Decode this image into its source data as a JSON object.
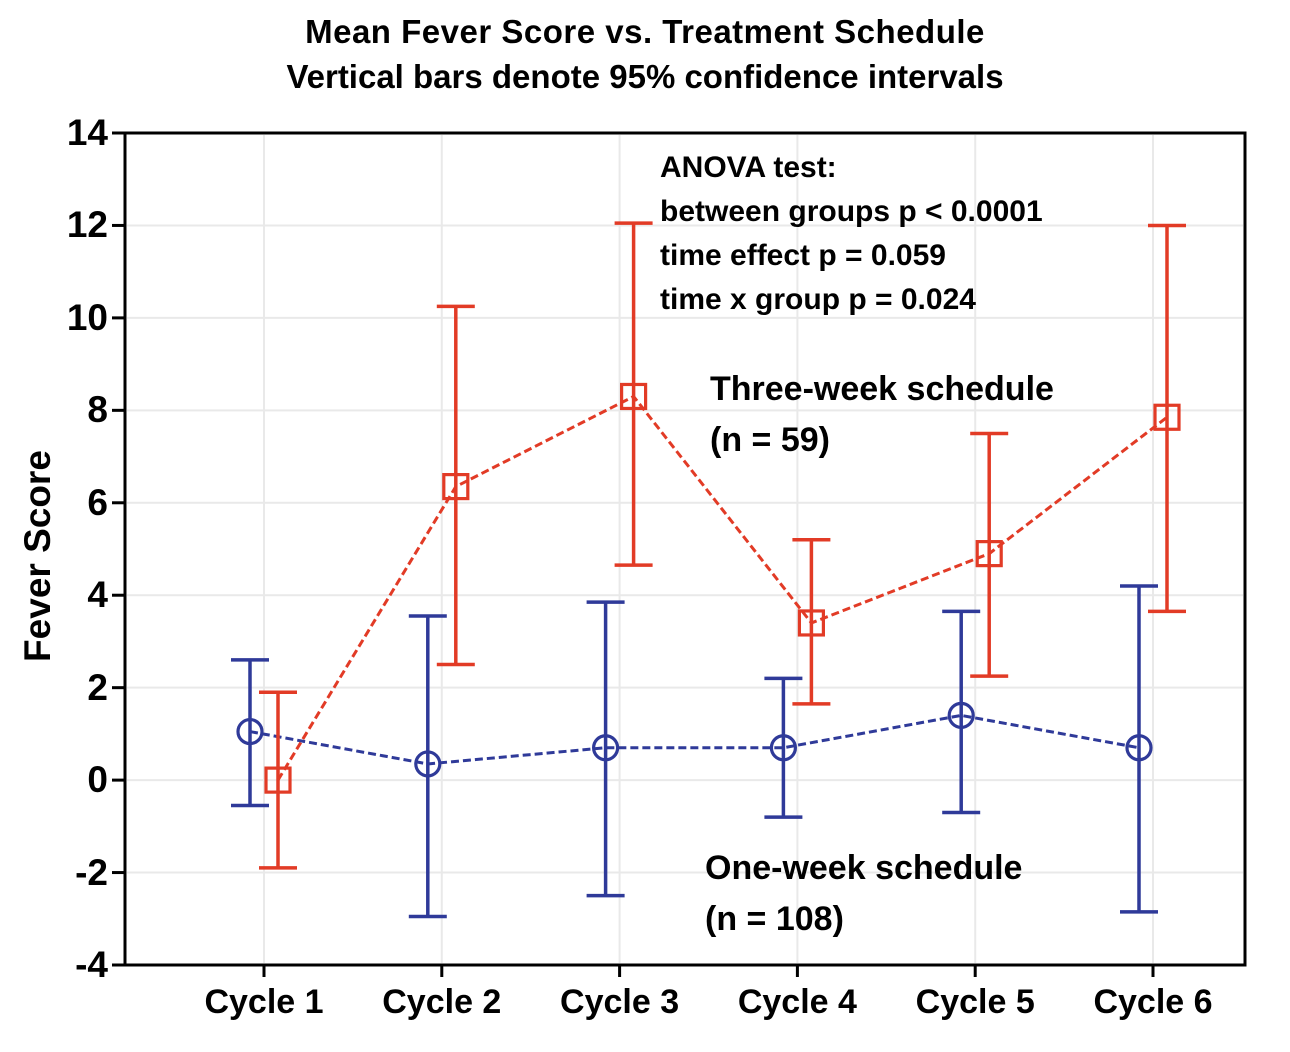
{
  "chart_data": {
    "type": "line",
    "title": "Mean Fever Score vs. Treatment Schedule",
    "subtitle": "Vertical bars denote 95% confidence intervals",
    "ylabel": "Fever Score",
    "ylim": [
      -4,
      14
    ],
    "ytick_step": 2,
    "grid": "both",
    "legend_position": "inline-text-labels",
    "categories": [
      "Cycle 1",
      "Cycle 2",
      "Cycle 3",
      "Cycle 4",
      "Cycle 5",
      "Cycle 6"
    ],
    "series": [
      {
        "name": "Three-week schedule",
        "n_label": "(n = 59)",
        "marker": "square",
        "color": "#E23B26",
        "offset": 14,
        "means": [
          0.0,
          6.35,
          8.3,
          3.4,
          4.9,
          7.85
        ],
        "ci_low": [
          -1.9,
          2.5,
          4.65,
          1.65,
          2.25,
          3.65
        ],
        "ci_high": [
          1.9,
          10.25,
          12.05,
          5.2,
          7.5,
          12.0
        ]
      },
      {
        "name": "One-week schedule",
        "n_label": "(n = 108)",
        "marker": "circle",
        "color": "#2F3A99",
        "offset": -14,
        "means": [
          1.05,
          0.35,
          0.7,
          0.7,
          1.4,
          0.7
        ],
        "ci_low": [
          -0.55,
          -2.95,
          -2.5,
          -0.8,
          -0.7,
          -2.85
        ],
        "ci_high": [
          2.6,
          3.55,
          3.85,
          2.2,
          3.65,
          4.2
        ]
      }
    ],
    "annotations": {
      "anova": {
        "l1": "ANOVA test:",
        "l2": "between groups p < 0.0001",
        "l3": "time effect p = 0.059",
        "l4": "time x group p = 0.024"
      }
    }
  },
  "colors": {
    "axis": "#000000",
    "grid": "#E9E9E9",
    "background": "#FFFFFF"
  }
}
